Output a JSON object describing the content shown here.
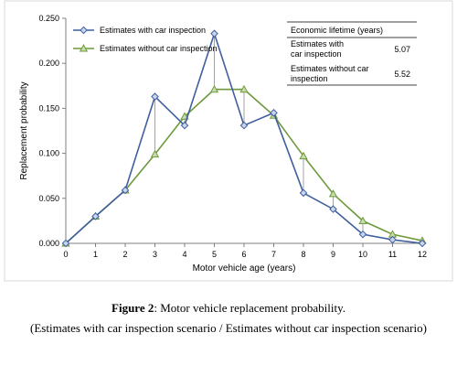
{
  "chart_data": {
    "type": "line",
    "xlabel": "Motor vehicle age (years)",
    "ylabel": "Replacement probability",
    "x": [
      0,
      1,
      2,
      3,
      4,
      5,
      6,
      7,
      8,
      9,
      10,
      11,
      12
    ],
    "xlim": [
      0,
      12
    ],
    "ylim": [
      0,
      0.25
    ],
    "yticks": [
      "0.000",
      "0.050",
      "0.100",
      "0.150",
      "0.200",
      "0.250"
    ],
    "ytick_values": [
      0,
      0.05,
      0.1,
      0.15,
      0.2,
      0.25
    ],
    "xticks": [
      "0",
      "1",
      "2",
      "3",
      "4",
      "5",
      "6",
      "7",
      "8",
      "9",
      "10",
      "11",
      "12"
    ],
    "grid": false,
    "legend_position": "top-left",
    "series": [
      {
        "name": "Estimates with car inspection",
        "color": "#3f5f9e",
        "marker": "diamond",
        "values": [
          0.0,
          0.03,
          0.059,
          0.163,
          0.131,
          0.233,
          0.131,
          0.145,
          0.056,
          0.038,
          0.01,
          0.004,
          0.0
        ]
      },
      {
        "name": "Estimates without car inspection",
        "color": "#6e9a3c",
        "marker": "triangle",
        "values": [
          0.0,
          0.03,
          0.059,
          0.099,
          0.141,
          0.171,
          0.171,
          0.142,
          0.097,
          0.055,
          0.025,
          0.01,
          0.003
        ]
      }
    ],
    "table": {
      "header": "Economic lifetime (years)",
      "rows": [
        {
          "label_line1": "Estimates with",
          "label_line2": "car inspection",
          "value": "5.07"
        },
        {
          "label_line1": "Estimates without car",
          "label_line2": "inspection",
          "value": "5.52"
        }
      ]
    }
  },
  "caption": {
    "figure_label": "Figure 2",
    "figure_text": ": Motor vehicle replacement probability.",
    "subtitle": "(Estimates with car inspection scenario / Estimates without car inspection scenario)"
  }
}
